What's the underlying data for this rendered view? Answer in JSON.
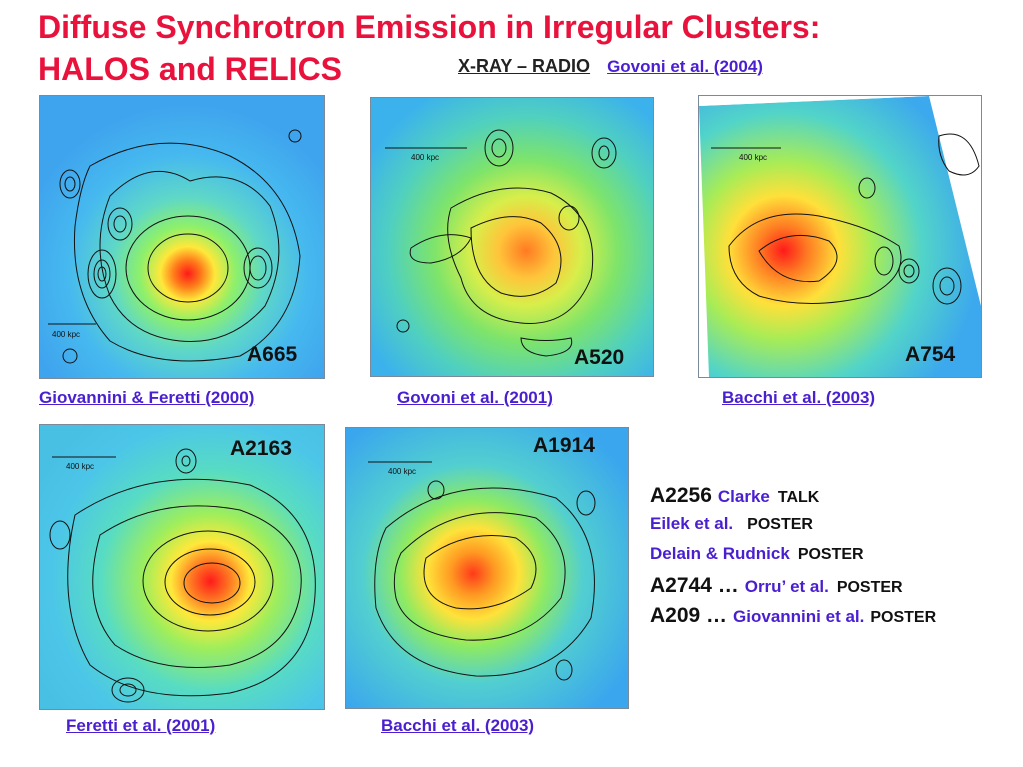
{
  "title": {
    "line1": "Diffuse Synchrotron Emission in Irregular Clusters:",
    "line2": "HALOS and RELICS"
  },
  "subheading": {
    "label": "X-RAY – RADIO",
    "reference": "Govoni et al. (2004)"
  },
  "panels": [
    {
      "name": "A665",
      "caption": "Giovannini & Feretti (2000)",
      "scale": "400 kpc"
    },
    {
      "name": "A520",
      "caption": "Govoni et al. (2001)",
      "scale": "400 kpc"
    },
    {
      "name": "A754",
      "caption": "Bacchi  et al. (2003)",
      "scale": "400 kpc"
    },
    {
      "name": "A2163",
      "caption": "Feretti et al. (2001)",
      "scale": "400 kpc"
    },
    {
      "name": "A1914",
      "caption": "Bacchi et al. (2003)",
      "scale": "400 kpc"
    }
  ],
  "references": [
    {
      "cluster": "A2256",
      "author": "Clarke",
      "type": "TALK"
    },
    {
      "cluster": "",
      "author": "Eilek et al.",
      "type": "POSTER"
    },
    {
      "cluster": "",
      "author": "Delain & Rudnick",
      "type": "POSTER"
    },
    {
      "cluster": "A2744 …",
      "author": "Orru’  et al.",
      "type": "POSTER"
    },
    {
      "cluster": "A209 …",
      "author": "Giovannini et al.",
      "type": "POSTER"
    }
  ],
  "colors": {
    "title": "#e8123c",
    "reference": "#4a1fd0",
    "text": "#111111"
  }
}
